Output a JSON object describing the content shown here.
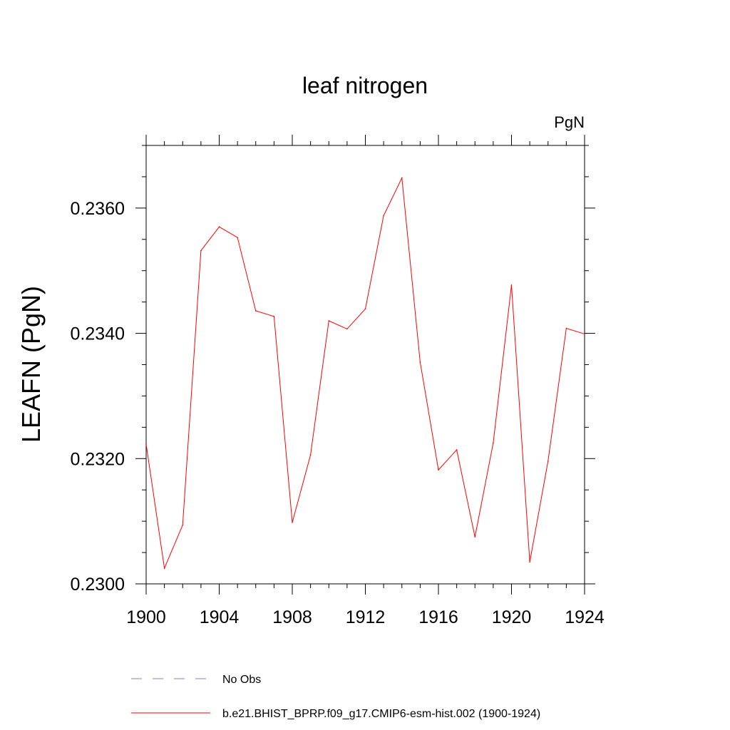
{
  "chart_data": {
    "type": "line",
    "title": "leaf nitrogen",
    "units": "PgN",
    "xlabel": "",
    "ylabel": "LEAFN  (PgN)",
    "xlim": [
      1900,
      1924
    ],
    "ylim": [
      0.23,
      0.237
    ],
    "xticks": [
      1900,
      1904,
      1908,
      1912,
      1916,
      1920,
      1924
    ],
    "xtick_labels": [
      "1900",
      "1904",
      "1908",
      "1912",
      "1916",
      "1920",
      "1924"
    ],
    "yticks": [
      0.23,
      0.232,
      0.234,
      0.236
    ],
    "ytick_labels": [
      "0.2300",
      "0.2320",
      "0.2340",
      "0.2360"
    ],
    "grid": false,
    "legend_position": "bottom",
    "series": [
      {
        "name": "No Obs",
        "style": "dashed",
        "color": "#8080c0",
        "x": [],
        "values": []
      },
      {
        "name": "b.e21.BHIST_BPRP.f09_g17.CMIP6-esm-hist.002 (1900-1924)",
        "style": "solid",
        "color": "#ff0000",
        "x": [
          1900,
          1901,
          1902,
          1903,
          1904,
          1905,
          1906,
          1907,
          1908,
          1909,
          1910,
          1911,
          1912,
          1913,
          1914,
          1915,
          1916,
          1917,
          1918,
          1919,
          1920,
          1921,
          1922,
          1923,
          1924
        ],
        "values": [
          0.23223,
          0.23025,
          0.23094,
          0.23532,
          0.2357,
          0.23553,
          0.23436,
          0.23427,
          0.23098,
          0.23206,
          0.2342,
          0.23407,
          0.23439,
          0.23588,
          0.23648,
          0.23354,
          0.23182,
          0.23214,
          0.23075,
          0.23225,
          0.23477,
          0.23035,
          0.23196,
          0.23408,
          0.23399
        ]
      }
    ]
  }
}
